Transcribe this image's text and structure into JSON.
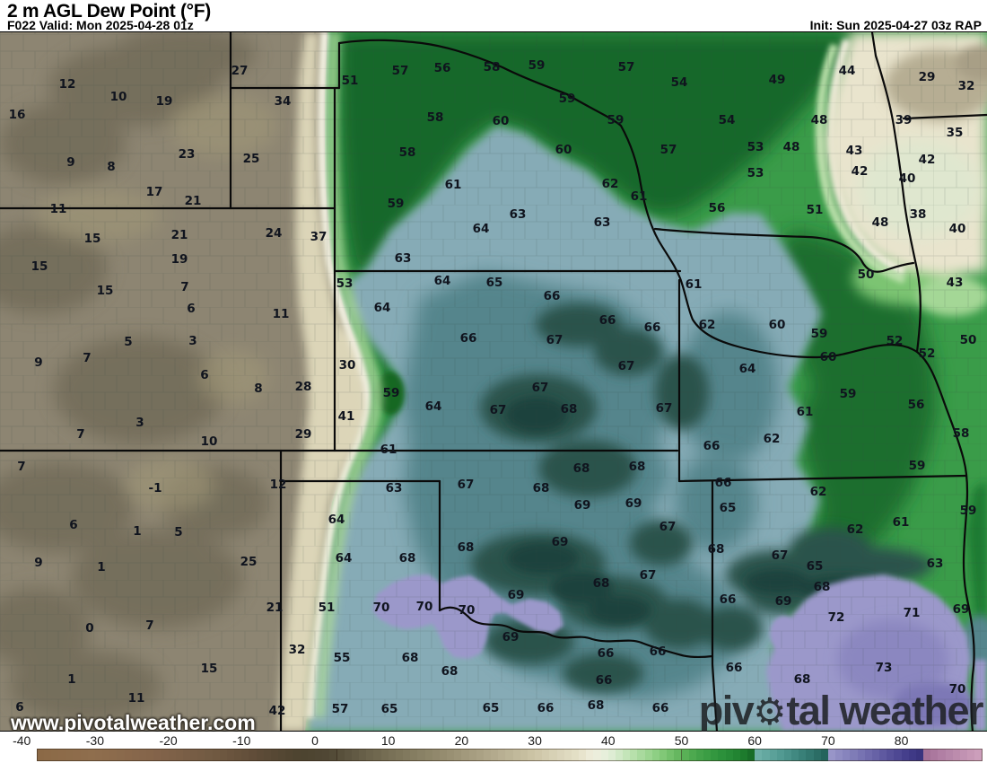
{
  "header": {
    "title": "2 m AGL Dew Point (°F)",
    "forecast_label": "F022 Valid: Mon 2025-04-28 01z",
    "init_label": "Init: Sun 2025-04-27 03z RAP"
  },
  "watermark": {
    "site": "www.pivotalweather.com",
    "brand_pre": "piv",
    "brand_gear_icon": "⚙",
    "brand_post": "tal weather"
  },
  "colorbar": {
    "unit": "°F",
    "ticks": [
      -40,
      -30,
      -20,
      -10,
      0,
      10,
      20,
      30,
      40,
      50,
      60,
      70,
      80
    ],
    "range_min": -38,
    "range_max": 91,
    "stops": [
      [
        -38,
        "#8b6946"
      ],
      [
        -30,
        "#8f6e4d"
      ],
      [
        -22,
        "#84644a"
      ],
      [
        -14,
        "#715a42"
      ],
      [
        -8,
        "#5f4c38"
      ],
      [
        -2,
        "#4c432f"
      ],
      [
        2,
        "#504835"
      ],
      [
        6,
        "#655d46"
      ],
      [
        10,
        "#776f55"
      ],
      [
        14,
        "#877f63"
      ],
      [
        18,
        "#978e71"
      ],
      [
        22,
        "#a89f82"
      ],
      [
        26,
        "#bab194"
      ],
      [
        30,
        "#cdc5a6"
      ],
      [
        33,
        "#d9d3b8"
      ],
      [
        36,
        "#e5e1c8"
      ],
      [
        38,
        "#efeedd"
      ],
      [
        40,
        "#e4efda"
      ],
      [
        42,
        "#cbe7c0"
      ],
      [
        44,
        "#b0dda4"
      ],
      [
        46,
        "#95d28a"
      ],
      [
        48,
        "#7ac471"
      ],
      [
        50,
        "#5fb35a"
      ],
      [
        52,
        "#47a54b"
      ],
      [
        55,
        "#2f943d"
      ],
      [
        58,
        "#1f8130"
      ],
      [
        60,
        "#166825"
      ],
      [
        60.1,
        "#71b2aa"
      ],
      [
        62,
        "#5fa49c"
      ],
      [
        64,
        "#4e968e"
      ],
      [
        66,
        "#3d847c"
      ],
      [
        68,
        "#2e726a"
      ],
      [
        70,
        "#205f57"
      ],
      [
        70.1,
        "#9b98ca"
      ],
      [
        73,
        "#8380ba"
      ],
      [
        76,
        "#6b66a9"
      ],
      [
        79,
        "#524c96"
      ],
      [
        81,
        "#413b89"
      ],
      [
        83,
        "#38327c"
      ],
      [
        83.1,
        "#a16e96"
      ],
      [
        85,
        "#ae7ca1"
      ],
      [
        87,
        "#b989ab"
      ],
      [
        89,
        "#c495b4"
      ],
      [
        91,
        "#cea1bd"
      ]
    ]
  },
  "map": {
    "region_colors": {
      "dry_tan": "#8d8572",
      "cream": "#dcd5b8",
      "white_band": "#f4f3e5",
      "light_green": "#abd79b",
      "green": "#3a9c49",
      "dark_green": "#17672a",
      "steel_blue": "#86abb6",
      "teal": "#54858c",
      "dark_teal": "#2b524c",
      "purple": "#9b98ca",
      "dark_purple": "#8b87c0",
      "border_black": "#0a0a0a"
    },
    "stations": [
      [
        12,
        75,
        93
      ],
      [
        27,
        267,
        78
      ],
      [
        16,
        19,
        127
      ],
      [
        10,
        132,
        107
      ],
      [
        19,
        183,
        112
      ],
      [
        34,
        315,
        112
      ],
      [
        23,
        208,
        171
      ],
      [
        25,
        280,
        176
      ],
      [
        9,
        79,
        180
      ],
      [
        8,
        124,
        185
      ],
      [
        17,
        172,
        213
      ],
      [
        21,
        215,
        223
      ],
      [
        11,
        65,
        232
      ],
      [
        15,
        103,
        265
      ],
      [
        21,
        200,
        261
      ],
      [
        24,
        305,
        259
      ],
      [
        37,
        355,
        263
      ],
      [
        19,
        200,
        288
      ],
      [
        51,
        390,
        89
      ],
      [
        57,
        446,
        78
      ],
      [
        56,
        493,
        75
      ],
      [
        58,
        548,
        74
      ],
      [
        59,
        598,
        72
      ],
      [
        57,
        698,
        74
      ],
      [
        59,
        632,
        109
      ],
      [
        59,
        686,
        133
      ],
      [
        58,
        485,
        130
      ],
      [
        60,
        558,
        134
      ],
      [
        60,
        628,
        166
      ],
      [
        58,
        454,
        169
      ],
      [
        61,
        505,
        205
      ],
      [
        62,
        680,
        204
      ],
      [
        61,
        712,
        218
      ],
      [
        59,
        441,
        226
      ],
      [
        63,
        577,
        238
      ],
      [
        63,
        671,
        247
      ],
      [
        64,
        536,
        254
      ],
      [
        63,
        449,
        287
      ],
      [
        54,
        757,
        91
      ],
      [
        49,
        866,
        88
      ],
      [
        44,
        944,
        78
      ],
      [
        29,
        1033,
        85
      ],
      [
        32,
        1077,
        95
      ],
      [
        54,
        810,
        133
      ],
      [
        48,
        913,
        133
      ],
      [
        39,
        1007,
        133
      ],
      [
        35,
        1064,
        147
      ],
      [
        57,
        745,
        166
      ],
      [
        53,
        842,
        163
      ],
      [
        48,
        882,
        163
      ],
      [
        43,
        952,
        167
      ],
      [
        42,
        1033,
        177
      ],
      [
        53,
        842,
        192
      ],
      [
        42,
        958,
        190
      ],
      [
        40,
        1011,
        198
      ],
      [
        56,
        799,
        231
      ],
      [
        51,
        908,
        233
      ],
      [
        38,
        1023,
        238
      ],
      [
        48,
        981,
        247
      ],
      [
        40,
        1067,
        254
      ],
      [
        15,
        44,
        296
      ],
      [
        15,
        117,
        323
      ],
      [
        7,
        206,
        319
      ],
      [
        6,
        213,
        343
      ],
      [
        11,
        313,
        349
      ],
      [
        5,
        143,
        380
      ],
      [
        3,
        215,
        379
      ],
      [
        9,
        43,
        403
      ],
      [
        7,
        97,
        398
      ],
      [
        6,
        228,
        417
      ],
      [
        8,
        288,
        432
      ],
      [
        28,
        338,
        430
      ],
      [
        3,
        156,
        470
      ],
      [
        7,
        90,
        483
      ],
      [
        29,
        338,
        483
      ],
      [
        10,
        233,
        491
      ],
      [
        7,
        24,
        519
      ],
      [
        -1,
        173,
        543
      ],
      [
        12,
        310,
        539
      ],
      [
        53,
        384,
        315
      ],
      [
        64,
        493,
        312
      ],
      [
        65,
        551,
        314
      ],
      [
        66,
        615,
        329
      ],
      [
        64,
        426,
        342
      ],
      [
        66,
        677,
        356
      ],
      [
        66,
        727,
        364
      ],
      [
        66,
        522,
        376
      ],
      [
        67,
        618,
        378
      ],
      [
        30,
        387,
        406
      ],
      [
        67,
        698,
        407
      ],
      [
        59,
        436,
        437
      ],
      [
        67,
        602,
        431
      ],
      [
        41,
        386,
        463
      ],
      [
        64,
        483,
        452
      ],
      [
        67,
        555,
        456
      ],
      [
        68,
        634,
        455
      ],
      [
        61,
        433,
        500
      ],
      [
        63,
        439,
        543
      ],
      [
        67,
        519,
        539
      ],
      [
        68,
        648,
        521
      ],
      [
        68,
        710,
        519
      ],
      [
        68,
        603,
        543
      ],
      [
        50,
        965,
        305
      ],
      [
        43,
        1064,
        314
      ],
      [
        61,
        773,
        316
      ],
      [
        62,
        788,
        361
      ],
      [
        60,
        866,
        361
      ],
      [
        59,
        913,
        371
      ],
      [
        52,
        997,
        379
      ],
      [
        50,
        1079,
        378
      ],
      [
        52,
        1033,
        393
      ],
      [
        60,
        923,
        397
      ],
      [
        64,
        833,
        410
      ],
      [
        59,
        945,
        438
      ],
      [
        56,
        1021,
        450
      ],
      [
        67,
        740,
        454
      ],
      [
        61,
        897,
        458
      ],
      [
        58,
        1071,
        482
      ],
      [
        62,
        860,
        488
      ],
      [
        66,
        793,
        496
      ],
      [
        59,
        1022,
        518
      ],
      [
        66,
        806,
        537
      ],
      [
        62,
        912,
        547
      ],
      [
        6,
        82,
        584
      ],
      [
        1,
        153,
        591
      ],
      [
        5,
        199,
        592
      ],
      [
        9,
        43,
        626
      ],
      [
        1,
        113,
        631
      ],
      [
        25,
        277,
        625
      ],
      [
        21,
        306,
        676
      ],
      [
        0,
        100,
        699
      ],
      [
        7,
        167,
        696
      ],
      [
        32,
        331,
        723
      ],
      [
        15,
        233,
        744
      ],
      [
        1,
        80,
        756
      ],
      [
        11,
        152,
        777
      ],
      [
        6,
        22,
        787
      ],
      [
        42,
        309,
        791
      ],
      [
        64,
        375,
        578
      ],
      [
        69,
        649,
        562
      ],
      [
        69,
        706,
        560
      ],
      [
        64,
        383,
        621
      ],
      [
        68,
        454,
        621
      ],
      [
        68,
        519,
        609
      ],
      [
        69,
        624,
        603
      ],
      [
        67,
        722,
        640
      ],
      [
        68,
        670,
        649
      ],
      [
        51,
        364,
        676
      ],
      [
        70,
        425,
        676
      ],
      [
        70,
        473,
        675
      ],
      [
        70,
        520,
        679
      ],
      [
        69,
        575,
        662
      ],
      [
        69,
        569,
        709
      ],
      [
        55,
        381,
        732
      ],
      [
        68,
        457,
        732
      ],
      [
        66,
        675,
        727
      ],
      [
        68,
        501,
        747
      ],
      [
        66,
        673,
        757
      ],
      [
        57,
        379,
        789
      ],
      [
        65,
        434,
        789
      ],
      [
        65,
        547,
        788
      ],
      [
        66,
        608,
        788
      ],
      [
        68,
        664,
        785
      ],
      [
        67,
        744,
        586
      ],
      [
        65,
        811,
        565
      ],
      [
        62,
        953,
        589
      ],
      [
        61,
        1004,
        581
      ],
      [
        59,
        1079,
        568
      ],
      [
        68,
        798,
        611
      ],
      [
        67,
        869,
        618
      ],
      [
        63,
        1042,
        627
      ],
      [
        65,
        908,
        630
      ],
      [
        68,
        916,
        653
      ],
      [
        66,
        811,
        667
      ],
      [
        69,
        873,
        669
      ],
      [
        71,
        1016,
        682
      ],
      [
        69,
        1071,
        678
      ],
      [
        72,
        932,
        687
      ],
      [
        66,
        733,
        725
      ],
      [
        66,
        818,
        743
      ],
      [
        73,
        985,
        743
      ],
      [
        68,
        894,
        756
      ],
      [
        70,
        1067,
        767
      ],
      [
        66,
        736,
        788
      ]
    ]
  }
}
